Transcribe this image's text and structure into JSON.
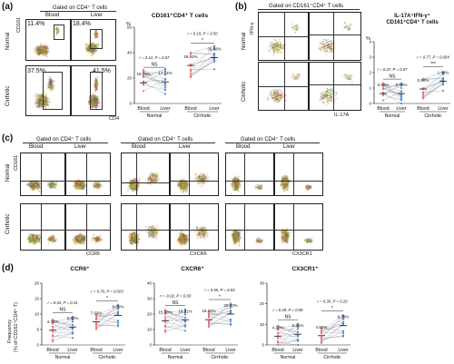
{
  "panels": {
    "a": {
      "label": "(a)",
      "gate": "Gated on CD4⁺ T cells",
      "col_blood": "Blood",
      "col_liver": "Liver",
      "row_normal": "Normal",
      "row_cirrhotic": "Cirrhotic",
      "y_axis": "CD161",
      "x_axis": "CD4",
      "pct_normal_blood": "11.4%",
      "pct_normal_liver": "18.4%",
      "pct_cirr_blood": "37.5%",
      "pct_cirr_liver": "41.5%"
    },
    "b": {
      "label": "(b)",
      "gate": "Gated on CD161⁺CD4⁺ T cells",
      "y_axis": "IFN-γ",
      "x_axis": "IL-17A",
      "row_normal": "Normal",
      "row_cirrhotic": "Cirrhotic"
    },
    "c": {
      "label": "(c)",
      "gate1": "Gated on CD4⁺ T cells",
      "gate2": "Gated on CD4⁺ T cells",
      "gate3": "Gated on CD4⁺ T cells",
      "col_blood": "Blood",
      "col_liver": "Liver",
      "row_normal": "Normal",
      "row_cirrhotic": "Cirrhotic",
      "y_axis": "CD161",
      "x1": "CCR6",
      "x2": "CXCR6",
      "x3": "CX3CR1"
    },
    "d": {
      "label": "(d)",
      "y_axis_1": "Frequency",
      "y_axis_2": "(% of CD161⁺CD4⁺ T)"
    }
  },
  "chart_data": [
    {
      "type": "line",
      "id": "a_chart",
      "title": "CD161⁺CD4⁺ T cells",
      "ylabel": "%",
      "ylim": [
        0,
        60
      ],
      "yticks": [
        "0",
        "20",
        "40",
        "60"
      ],
      "categories": [
        "Blood",
        "Liver",
        "Blood",
        "Liver"
      ],
      "groups": [
        "Normal",
        "Cirrhotic"
      ],
      "means": [
        16.29,
        17.04,
        29.92,
        36.08
      ],
      "mean_labels": [
        "16.29%",
        "17.04%",
        "29.92%",
        "36.08%"
      ],
      "stats": [
        "r = 0.12, P = 0.67",
        "r = 0.19, P = 0.50"
      ],
      "sig": [
        "NS",
        "*"
      ]
    },
    {
      "type": "line",
      "id": "b_chart",
      "title": "IL-17A⁺IFN-γ⁺",
      "subtitle": "CD161⁺CD4⁺ T cells",
      "ylabel": "%",
      "ylim": [
        0,
        4
      ],
      "yticks": [
        "0",
        "1",
        "2",
        "3",
        "4"
      ],
      "categories": [
        "Blood",
        "Liver",
        "Blood",
        "Liver"
      ],
      "groups": [
        "Normal",
        "Cirrhotic"
      ],
      "means": [
        0.64,
        0.64,
        0.94,
        1.44
      ],
      "mean_labels": [
        "0.64%",
        "0.64%",
        "0.94%",
        "1.44%"
      ],
      "stats": [
        "r = 0.47, P = 0.07",
        "r = 0.77, P = 0.004"
      ],
      "sig": [
        "NS",
        "***"
      ]
    },
    {
      "type": "line",
      "id": "d1",
      "title": "CCR6⁺",
      "ylim": [
        0,
        20
      ],
      "yticks": [
        "0",
        "5",
        "10",
        "15",
        "20"
      ],
      "categories": [
        "Blood",
        "Liver",
        "Blood",
        "Liver"
      ],
      "groups": [
        "Normal",
        "Cirrhotic"
      ],
      "means": [
        4.75,
        5.82,
        7.53,
        9.59
      ],
      "mean_labels": [
        "4.75%",
        "5.82%",
        "7.53%",
        "9.59%"
      ],
      "stats": [
        "r = 0.34, P = 0.31",
        "r = 0.70, P = 0.003"
      ],
      "sig": [
        "NS",
        "*"
      ]
    },
    {
      "type": "line",
      "id": "d2",
      "title": "CXCR6⁺",
      "ylim": [
        0,
        40
      ],
      "yticks": [
        "0",
        "10",
        "20",
        "30",
        "40"
      ],
      "categories": [
        "Blood",
        "Liver",
        "Blood",
        "Liver"
      ],
      "groups": [
        "Normal",
        "Cirrhotic"
      ],
      "means": [
        15.68,
        16.31,
        16.39,
        20.0
      ],
      "mean_labels": [
        "15.68%",
        "16.31%",
        "16.39%",
        "20.00%"
      ],
      "stats": [
        "r = -0.02, P = 0.93",
        "r = 0.55, P = 0.03"
      ],
      "sig": [
        "NS",
        "*"
      ]
    },
    {
      "type": "line",
      "id": "d3",
      "title": "CX3CR1⁺",
      "ylim": [
        0,
        30
      ],
      "yticks": [
        "0",
        "10",
        "20",
        "30"
      ],
      "categories": [
        "Blood",
        "Liver",
        "Blood",
        "Liver"
      ],
      "groups": [
        "Normal",
        "Cirrhotic"
      ],
      "means": [
        4.1,
        5.21,
        4.5,
        9.39
      ],
      "mean_labels": [
        "4.10%",
        "5.21%",
        "4.50%",
        "9.39%"
      ],
      "stats": [
        "r = 0.49, P = 0.08",
        "r = 0.35, P = 0.20"
      ],
      "sig": [
        "NS",
        "*"
      ]
    }
  ],
  "colors": {
    "blood": "#e8767a",
    "liver": "#5a8fd0",
    "line": "#8a8fa0"
  }
}
